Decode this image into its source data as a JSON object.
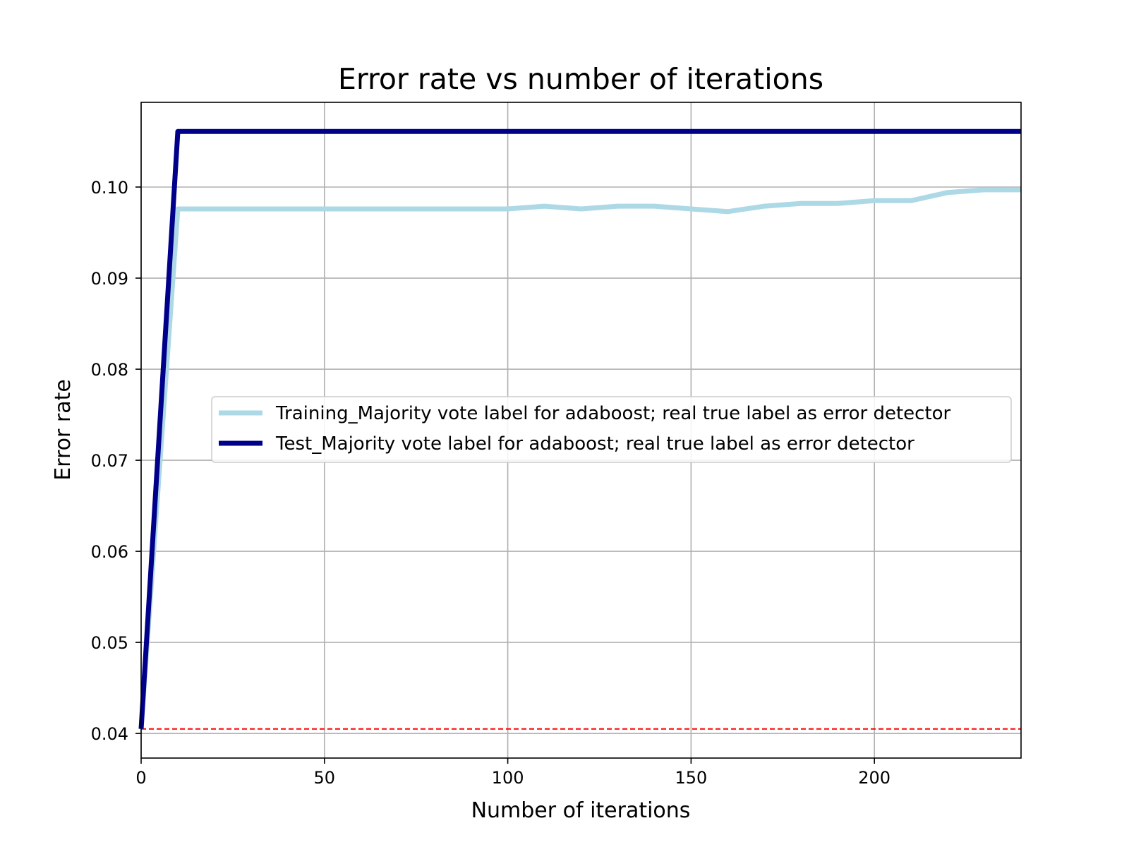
{
  "chart_data": {
    "type": "line",
    "title": "Error rate vs number of iterations",
    "xlabel": "Number of iterations",
    "ylabel": "Error rate",
    "xlim": [
      0,
      240
    ],
    "ylim": [
      0.0373,
      0.1093
    ],
    "xticks": [
      0,
      50,
      100,
      150,
      200
    ],
    "yticks": [
      0.04,
      0.05,
      0.06,
      0.07,
      0.08,
      0.09,
      0.1
    ],
    "xtick_labels": [
      "0",
      "50",
      "100",
      "150",
      "200"
    ],
    "ytick_labels": [
      "0.04",
      "0.05",
      "0.06",
      "0.07",
      "0.08",
      "0.09",
      "0.10"
    ],
    "grid": true,
    "legend_position": "center-right",
    "series": [
      {
        "name": "Training_Majority vote label for adaboost; real true label as error detector",
        "color": "#add8e6",
        "x": [
          0,
          10,
          20,
          30,
          40,
          50,
          60,
          70,
          80,
          90,
          100,
          110,
          120,
          130,
          140,
          150,
          160,
          170,
          180,
          190,
          200,
          210,
          220,
          230,
          240
        ],
        "y": [
          0.0405,
          0.0976,
          0.0976,
          0.0976,
          0.0976,
          0.0976,
          0.0976,
          0.0976,
          0.0976,
          0.0976,
          0.0976,
          0.0979,
          0.0976,
          0.0979,
          0.0979,
          0.0976,
          0.0973,
          0.0979,
          0.0982,
          0.0982,
          0.0985,
          0.0985,
          0.0994,
          0.0997,
          0.0997
        ]
      },
      {
        "name": "Test_Majority vote label for adaboost; real true label as error detector",
        "color": "#00008b",
        "x": [
          0,
          10,
          240
        ],
        "y": [
          0.0405,
          0.1061,
          0.1061
        ]
      }
    ],
    "reference_line": {
      "y": 0.0405,
      "color": "#ff0000",
      "style": "dashed"
    }
  }
}
